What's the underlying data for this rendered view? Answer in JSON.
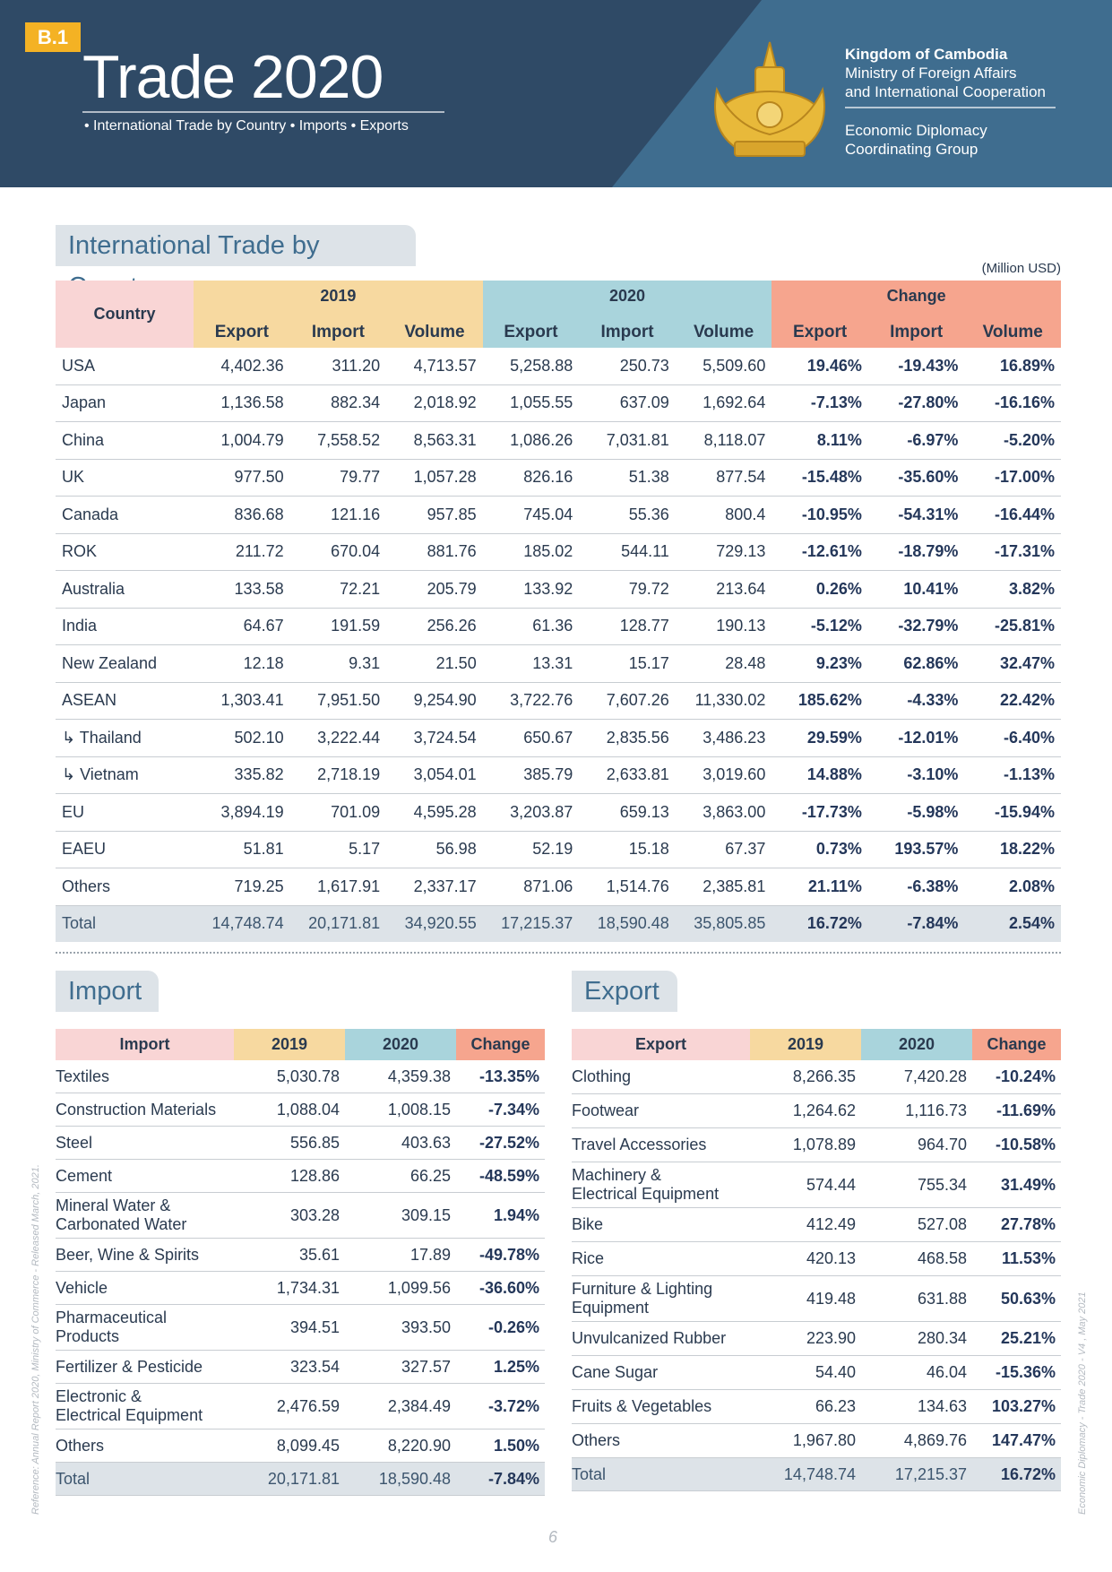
{
  "header": {
    "badge": "B.1",
    "title": "Trade 2020",
    "subtitle": "• International Trade by Country • Imports • Exports",
    "org": [
      "Kingdom of Cambodia",
      "Ministry of Foreign Affairs",
      "and International Cooperation"
    ],
    "group": [
      "Economic Diplomacy",
      "Coordinating Group"
    ]
  },
  "trade_by_country": {
    "title": "International Trade by Country",
    "unit": "(Million USD)",
    "header_groups": [
      "Country",
      "2019",
      "2020",
      "Change"
    ],
    "sub_headers": [
      "Export",
      "Import",
      "Volume",
      "Export",
      "Import",
      "Volume",
      "Export",
      "Import",
      "Volume"
    ],
    "rows": [
      [
        "USA",
        "4,402.36",
        "311.20",
        "4,713.57",
        "5,258.88",
        "250.73",
        "5,509.60",
        "19.46%",
        "-19.43%",
        "16.89%"
      ],
      [
        "Japan",
        "1,136.58",
        "882.34",
        "2,018.92",
        "1,055.55",
        "637.09",
        "1,692.64",
        "-7.13%",
        "-27.80%",
        "-16.16%"
      ],
      [
        "China",
        "1,004.79",
        "7,558.52",
        "8,563.31",
        "1,086.26",
        "7,031.81",
        "8,118.07",
        "8.11%",
        "-6.97%",
        "-5.20%"
      ],
      [
        "UK",
        "977.50",
        "79.77",
        "1,057.28",
        "826.16",
        "51.38",
        "877.54",
        "-15.48%",
        "-35.60%",
        "-17.00%"
      ],
      [
        "Canada",
        "836.68",
        "121.16",
        "957.85",
        "745.04",
        "55.36",
        "800.4",
        "-10.95%",
        "-54.31%",
        "-16.44%"
      ],
      [
        "ROK",
        "211.72",
        "670.04",
        "881.76",
        "185.02",
        "544.11",
        "729.13",
        "-12.61%",
        "-18.79%",
        "-17.31%"
      ],
      [
        "Australia",
        "133.58",
        "72.21",
        "205.79",
        "133.92",
        "79.72",
        "213.64",
        "0.26%",
        "10.41%",
        "3.82%"
      ],
      [
        "India",
        "64.67",
        "191.59",
        "256.26",
        "61.36",
        "128.77",
        "190.13",
        "-5.12%",
        "-32.79%",
        "-25.81%"
      ],
      [
        "New Zealand",
        "12.18",
        "9.31",
        "21.50",
        "13.31",
        "15.17",
        "28.48",
        "9.23%",
        "62.86%",
        "32.47%"
      ],
      [
        "ASEAN",
        "1,303.41",
        "7,951.50",
        "9,254.90",
        "3,722.76",
        "7,607.26",
        "11,330.02",
        "185.62%",
        "-4.33%",
        "22.42%"
      ],
      [
        "↳ Thailand",
        "502.10",
        "3,222.44",
        "3,724.54",
        "650.67",
        "2,835.56",
        "3,486.23",
        "29.59%",
        "-12.01%",
        "-6.40%"
      ],
      [
        "↳ Vietnam",
        "335.82",
        "2,718.19",
        "3,054.01",
        "385.79",
        "2,633.81",
        "3,019.60",
        "14.88%",
        "-3.10%",
        "-1.13%"
      ],
      [
        "EU",
        "3,894.19",
        "701.09",
        "4,595.28",
        "3,203.87",
        "659.13",
        "3,863.00",
        "-17.73%",
        "-5.98%",
        "-15.94%"
      ],
      [
        "EAEU",
        "51.81",
        "5.17",
        "56.98",
        "52.19",
        "15.18",
        "67.37",
        "0.73%",
        "193.57%",
        "18.22%"
      ],
      [
        "Others",
        "719.25",
        "1,617.91",
        "2,337.17",
        "871.06",
        "1,514.76",
        "2,385.81",
        "21.11%",
        "-6.38%",
        "2.08%"
      ]
    ],
    "total": [
      "Total",
      "14,748.74",
      "20,171.81",
      "34,920.55",
      "17,215.37",
      "18,590.48",
      "35,805.85",
      "16.72%",
      "-7.84%",
      "2.54%"
    ]
  },
  "import": {
    "title": "Import",
    "headers": [
      "Import",
      "2019",
      "2020",
      "Change"
    ],
    "rows": [
      [
        "Textiles",
        "5,030.78",
        "4,359.38",
        "-13.35%"
      ],
      [
        "Construction Materials",
        "1,088.04",
        "1,008.15",
        "-7.34%"
      ],
      [
        "Steel",
        "556.85",
        "403.63",
        "-27.52%"
      ],
      [
        "Cement",
        "128.86",
        "66.25",
        "-48.59%"
      ],
      [
        "Mineral Water &\nCarbonated Water",
        "303.28",
        "309.15",
        "1.94%"
      ],
      [
        "Beer, Wine & Spirits",
        "35.61",
        "17.89",
        "-49.78%"
      ],
      [
        "Vehicle",
        "1,734.31",
        "1,099.56",
        "-36.60%"
      ],
      [
        "Pharmaceutical\nProducts",
        "394.51",
        "393.50",
        "-0.26%"
      ],
      [
        "Fertilizer & Pesticide",
        "323.54",
        "327.57",
        "1.25%"
      ],
      [
        "Electronic &\nElectrical Equipment",
        "2,476.59",
        "2,384.49",
        "-3.72%"
      ],
      [
        "Others",
        "8,099.45",
        "8,220.90",
        "1.50%"
      ]
    ],
    "total": [
      "Total",
      "20,171.81",
      "18,590.48",
      "-7.84%"
    ]
  },
  "export": {
    "title": "Export",
    "headers": [
      "Export",
      "2019",
      "2020",
      "Change"
    ],
    "rows": [
      [
        "Clothing",
        "8,266.35",
        "7,420.28",
        "-10.24%"
      ],
      [
        "Footwear",
        "1,264.62",
        "1,116.73",
        "-11.69%"
      ],
      [
        "Travel Accessories",
        "1,078.89",
        "964.70",
        "-10.58%"
      ],
      [
        "Machinery &\nElectrical Equipment",
        "574.44",
        "755.34",
        "31.49%"
      ],
      [
        "Bike",
        "412.49",
        "527.08",
        "27.78%"
      ],
      [
        "Rice",
        "420.13",
        "468.58",
        "11.53%"
      ],
      [
        "Furniture & Lighting\nEquipment",
        "419.48",
        "631.88",
        "50.63%"
      ],
      [
        "Unvulcanized Rubber",
        "223.90",
        "280.34",
        "25.21%"
      ],
      [
        "Cane Sugar",
        "54.40",
        "46.04",
        "-15.36%"
      ],
      [
        "Fruits & Vegetables",
        "66.23",
        "134.63",
        "103.27%"
      ],
      [
        "Others",
        "1,967.80",
        "4,869.76",
        "147.47%"
      ]
    ],
    "total": [
      "Total",
      "14,748.74",
      "17,215.37",
      "16.72%"
    ]
  },
  "footer": {
    "reference": "Reference: Annual Report 2020, Ministry of Commerce - Released March, 2021.",
    "version": "Economic Diplomacy - Trade 2020 - V4 , May 2021",
    "page": "6"
  }
}
